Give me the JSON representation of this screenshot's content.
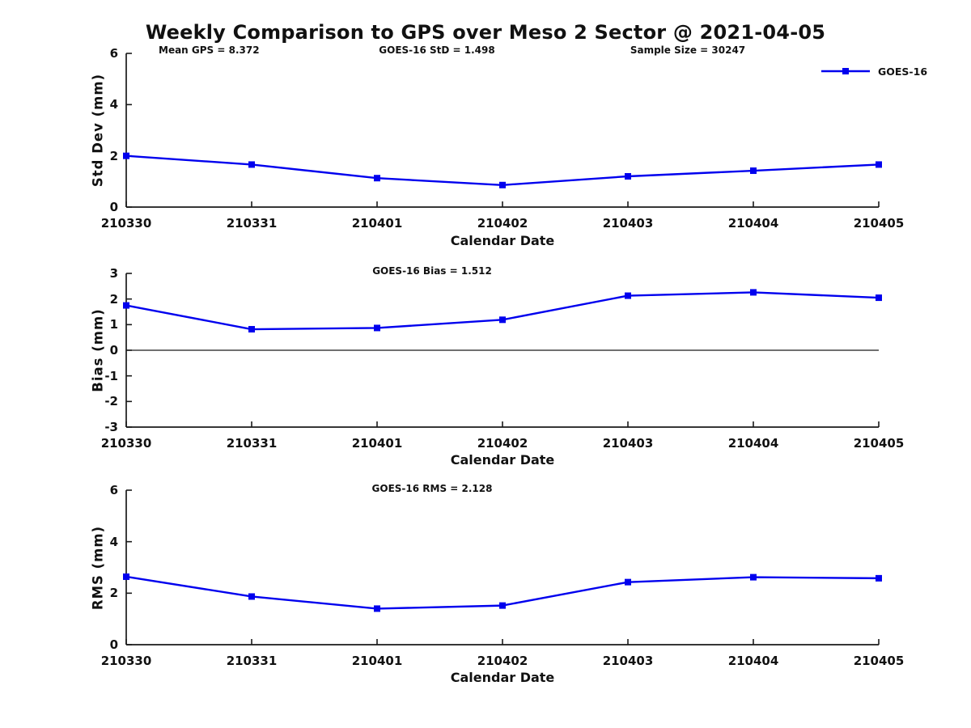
{
  "title": "Weekly Comparison to GPS over Meso 2 Sector @ 2021-04-05",
  "legend": {
    "label": "GOES-16",
    "color": "#0000EE",
    "position": "top-right"
  },
  "annotations": {
    "mean_gps": "Mean GPS = 8.372",
    "goes16_std": "GOES-16 StD = 1.498",
    "sample_size": "Sample Size = 30247"
  },
  "chart_data": [
    {
      "type": "line",
      "title": "",
      "categories": [
        "210330",
        "210331",
        "210401",
        "210402",
        "210403",
        "210404",
        "210405"
      ],
      "series": [
        {
          "name": "GOES-16",
          "values": [
            2.0,
            1.66,
            1.13,
            0.86,
            1.2,
            1.42,
            1.66
          ]
        }
      ],
      "xlabel": "Calendar Date",
      "ylabel": "Std Dev (mm)",
      "ylim": [
        0,
        6
      ],
      "yticks": [
        0,
        2,
        4,
        6
      ],
      "zero_line": false,
      "grid": false,
      "line_color": "#0000EE",
      "marker": "square",
      "legend_entries": [
        "GOES-16"
      ],
      "top_annotations": [
        "Mean GPS = 8.372",
        "GOES-16 StD = 1.498",
        "Sample Size = 30247"
      ]
    },
    {
      "type": "line",
      "title": "GOES-16 Bias  = 1.512",
      "categories": [
        "210330",
        "210331",
        "210401",
        "210402",
        "210403",
        "210404",
        "210405"
      ],
      "series": [
        {
          "name": "GOES-16",
          "values": [
            1.75,
            0.82,
            0.87,
            1.19,
            2.13,
            2.26,
            2.05
          ]
        }
      ],
      "xlabel": "Calendar Date",
      "ylabel": "Bias (mm)",
      "ylim": [
        -3,
        3
      ],
      "yticks": [
        3,
        2,
        1,
        0,
        -1,
        -2,
        -3
      ],
      "zero_line": true,
      "grid": false,
      "line_color": "#0000EE",
      "marker": "square"
    },
    {
      "type": "line",
      "title": "GOES-16 RMS = 2.128",
      "categories": [
        "210330",
        "210331",
        "210401",
        "210402",
        "210403",
        "210404",
        "210405"
      ],
      "series": [
        {
          "name": "GOES-16",
          "values": [
            2.64,
            1.87,
            1.4,
            1.52,
            2.43,
            2.62,
            2.58
          ]
        }
      ],
      "xlabel": "Calendar Date",
      "ylabel": "RMS (mm)",
      "ylim": [
        0,
        6
      ],
      "yticks": [
        0,
        2,
        4,
        6
      ],
      "zero_line": false,
      "grid": false,
      "line_color": "#0000EE",
      "marker": "square"
    }
  ]
}
